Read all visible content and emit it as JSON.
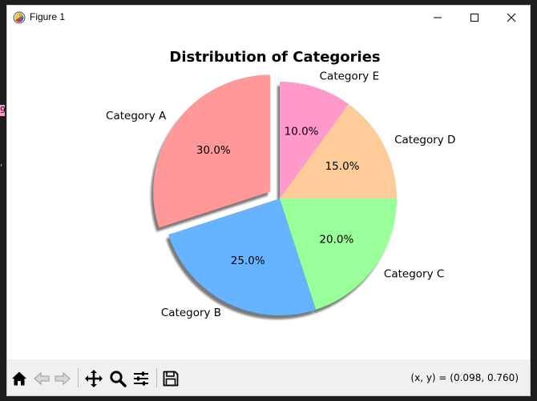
{
  "window": {
    "title": "Figure 1"
  },
  "background_marks": [
    "9",
    "'"
  ],
  "toolbar": {
    "buttons": [
      "home-icon",
      "back-icon",
      "forward-icon",
      "pan-icon",
      "zoom-icon",
      "configure-subplots-icon",
      "save-icon"
    ],
    "coords": "(x, y) = (0.098, 0.760)"
  },
  "chart_data": {
    "type": "pie",
    "title": "Distribution of Categories",
    "start_angle_deg": 90,
    "direction": "counterclockwise",
    "shadow": true,
    "slices": [
      {
        "label": "Category A",
        "value": 30,
        "pct_label": "30.0%",
        "color": "#ff9999",
        "explode": 0.1
      },
      {
        "label": "Category B",
        "value": 25,
        "pct_label": "25.0%",
        "color": "#66b3ff",
        "explode": 0
      },
      {
        "label": "Category C",
        "value": 20,
        "pct_label": "20.0%",
        "color": "#99ff99",
        "explode": 0
      },
      {
        "label": "Category D",
        "value": 15,
        "pct_label": "15.0%",
        "color": "#ffcc99",
        "explode": 0
      },
      {
        "label": "Category E",
        "value": 10,
        "pct_label": "10.0%",
        "color": "#ff99cc",
        "explode": 0
      }
    ]
  }
}
